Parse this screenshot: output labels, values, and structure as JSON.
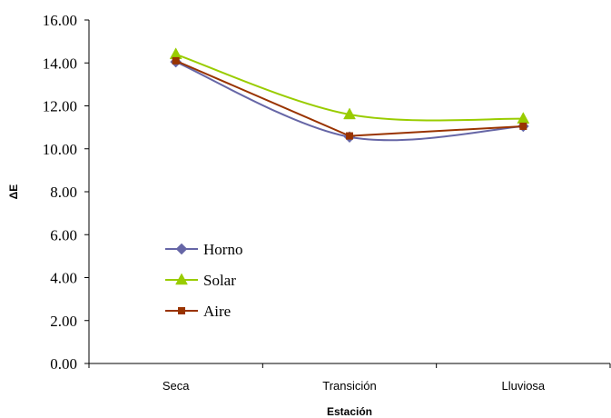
{
  "chart_data": {
    "type": "line",
    "categories": [
      "Seca",
      "Transición",
      "Lluviosa"
    ],
    "xlabel": "Estación",
    "ylabel": "ΔE",
    "ylim": [
      0,
      16
    ],
    "yticks": [
      "0.00",
      "2.00",
      "4.00",
      "6.00",
      "8.00",
      "10.00",
      "12.00",
      "14.00",
      "16.00"
    ],
    "grid": false,
    "legend_position": "left",
    "series": [
      {
        "name": "Horno",
        "values": [
          14.05,
          10.55,
          11.05
        ],
        "color": "#6666a6",
        "marker": "diamond"
      },
      {
        "name": "Solar",
        "values": [
          14.4,
          11.6,
          11.4
        ],
        "color": "#99cc00",
        "marker": "triangle"
      },
      {
        "name": "Aire",
        "values": [
          14.1,
          10.6,
          11.05
        ],
        "color": "#993300",
        "marker": "square"
      }
    ]
  }
}
